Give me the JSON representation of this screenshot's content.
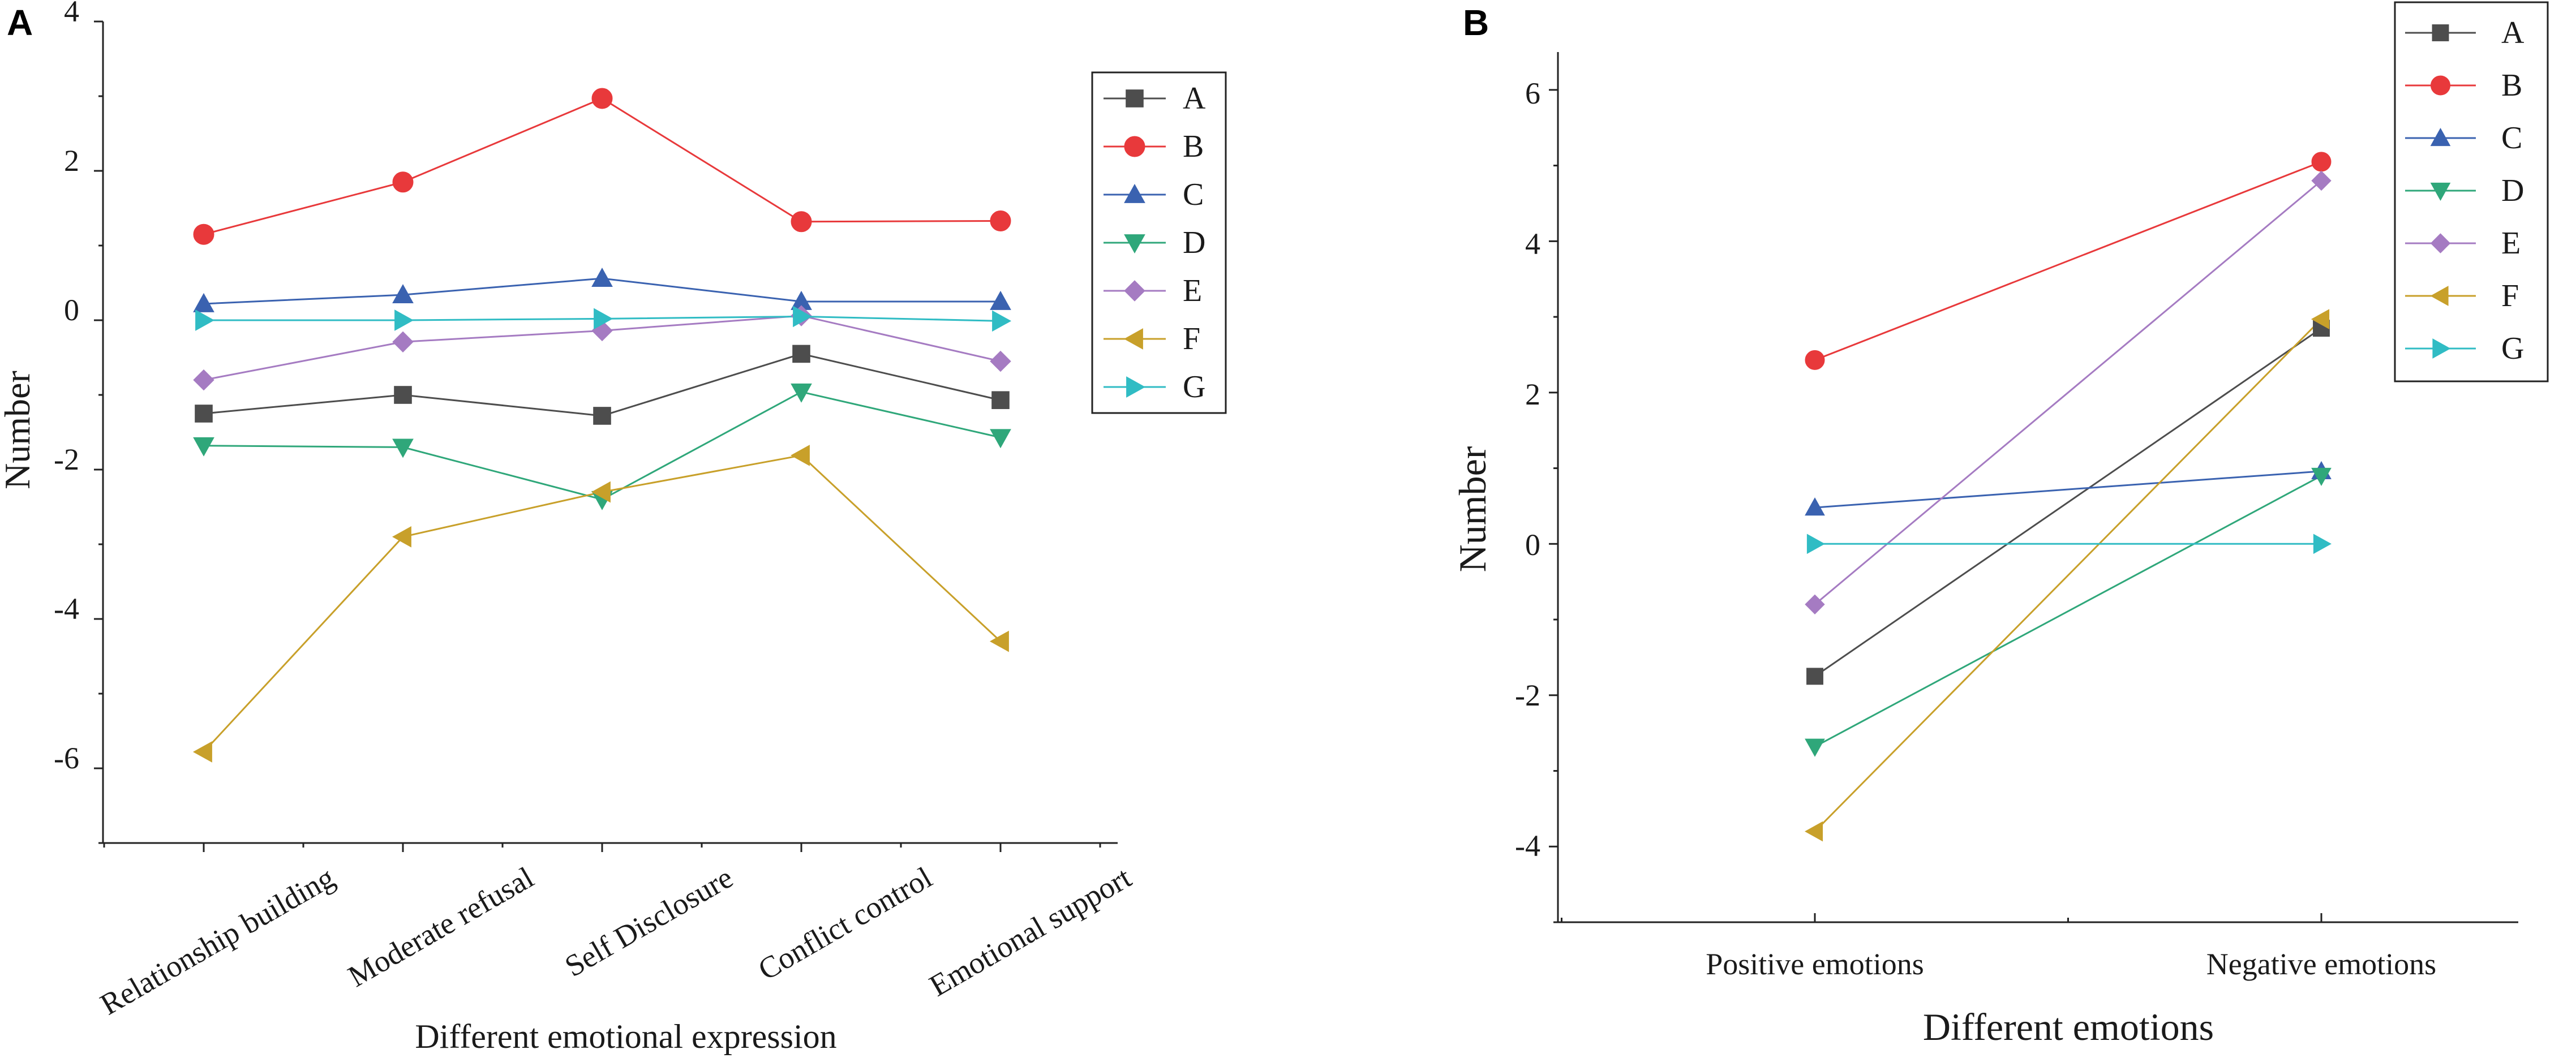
{
  "chart_data": [
    {
      "panel": "A",
      "type": "line",
      "xlabel": "Different emotional expression",
      "ylabel": "Number",
      "ylim": [
        -7,
        4
      ],
      "yticks": [
        -6,
        -4,
        -2,
        0,
        2,
        4
      ],
      "ytick_labels": [
        "-6",
        "-4",
        "-2",
        "0",
        "2",
        "4"
      ],
      "categories": [
        "Relationship building",
        "Moderate refusal",
        "Self Disclosure",
        "Conflict control",
        "Emotional support"
      ],
      "legend_position": "top-right",
      "series": [
        {
          "name": "A",
          "color": "#4d4d4d",
          "marker": "square",
          "values": [
            -1.25,
            -1.0,
            -1.28,
            -0.45,
            -1.07
          ]
        },
        {
          "name": "B",
          "color": "#e8393b",
          "marker": "circle",
          "values": [
            1.15,
            1.85,
            2.97,
            1.32,
            1.33
          ]
        },
        {
          "name": "C",
          "color": "#3a62b0",
          "marker": "triangle-up",
          "values": [
            0.22,
            0.34,
            0.56,
            0.25,
            0.25
          ]
        },
        {
          "name": "D",
          "color": "#2fa77a",
          "marker": "triangle-down",
          "values": [
            -1.68,
            -1.7,
            -2.4,
            -0.96,
            -1.57
          ]
        },
        {
          "name": "E",
          "color": "#a57bc2",
          "marker": "diamond",
          "values": [
            -0.8,
            -0.29,
            -0.14,
            0.06,
            -0.55
          ]
        },
        {
          "name": "F",
          "color": "#c8a02a",
          "marker": "triangle-left",
          "values": [
            -5.78,
            -2.9,
            -2.3,
            -1.81,
            -4.3
          ]
        },
        {
          "name": "G",
          "color": "#30bcc4",
          "marker": "triangle-right",
          "values": [
            0.0,
            0.0,
            0.02,
            0.05,
            -0.01
          ]
        }
      ]
    },
    {
      "panel": "B",
      "type": "line",
      "xlabel": "Different emotions",
      "ylabel": "Number",
      "ylim": [
        -5,
        6.5
      ],
      "yticks": [
        -4,
        -2,
        0,
        2,
        4,
        6
      ],
      "ytick_labels": [
        "-4",
        "-2",
        "0",
        "2",
        "4",
        "6"
      ],
      "categories": [
        "Positive emotions",
        "Negative emotions"
      ],
      "legend_position": "top-right",
      "series": [
        {
          "name": "A",
          "color": "#4d4d4d",
          "marker": "square",
          "values": [
            -1.75,
            2.85
          ]
        },
        {
          "name": "B",
          "color": "#e8393b",
          "marker": "circle",
          "values": [
            2.43,
            5.05
          ]
        },
        {
          "name": "C",
          "color": "#3a62b0",
          "marker": "triangle-up",
          "values": [
            0.48,
            0.96
          ]
        },
        {
          "name": "D",
          "color": "#2fa77a",
          "marker": "triangle-down",
          "values": [
            -2.68,
            0.9
          ]
        },
        {
          "name": "E",
          "color": "#a57bc2",
          "marker": "diamond",
          "values": [
            -0.8,
            4.8
          ]
        },
        {
          "name": "F",
          "color": "#c8a02a",
          "marker": "triangle-left",
          "values": [
            -3.8,
            2.97
          ]
        },
        {
          "name": "G",
          "color": "#30bcc4",
          "marker": "triangle-right",
          "values": [
            0.0,
            0.0
          ]
        }
      ]
    }
  ]
}
